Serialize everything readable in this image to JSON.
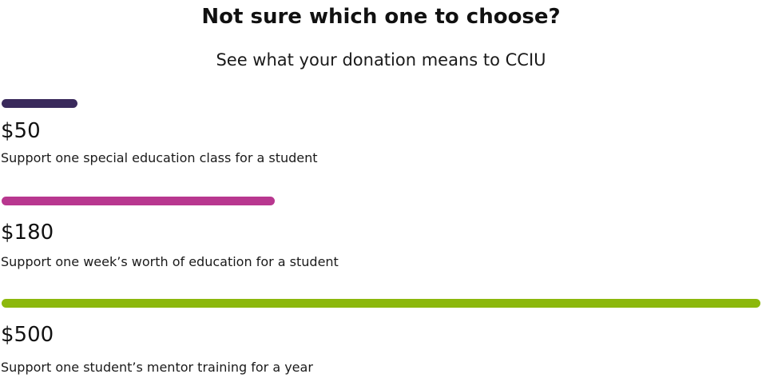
{
  "heading": "Not sure which one to choose?",
  "subheading": "See what your donation means to CCIU",
  "tiers": [
    {
      "amount": "$50",
      "description": "Support one special education class for a student",
      "color": "#3a2a5c",
      "bar_fraction": 0.1
    },
    {
      "amount": "$180",
      "description": "Support one week’s worth of education for a student",
      "color": "#b8378f",
      "bar_fraction": 0.36
    },
    {
      "amount": "$500",
      "description": "Support one student’s mentor training for a year",
      "color": "#8cb80c",
      "bar_fraction": 1.0
    }
  ]
}
